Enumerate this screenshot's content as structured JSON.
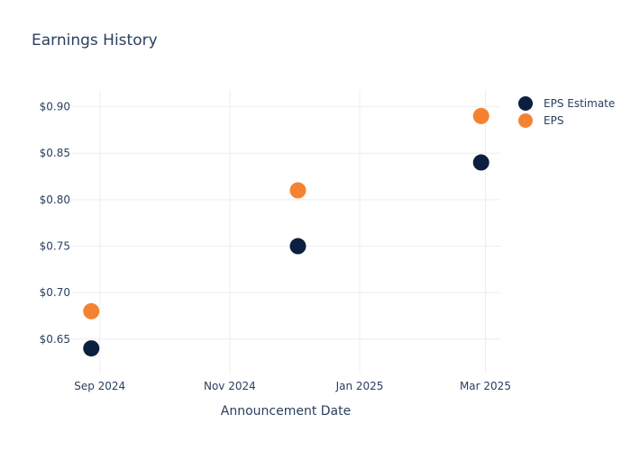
{
  "chart_data": {
    "type": "scatter",
    "title": "Earnings History",
    "xlabel": "Announcement Date",
    "ylabel": "",
    "x_tick_labels": [
      "Sep 2024",
      "Nov 2024",
      "Jan 2025",
      "Mar 2025"
    ],
    "x_tick_dates": [
      "2024-09-01",
      "2024-11-01",
      "2025-01-01",
      "2025-03-01"
    ],
    "y_tick_labels": [
      "$0.65",
      "$0.70",
      "$0.75",
      "$0.80",
      "$0.85",
      "$0.90"
    ],
    "y_tick_values": [
      0.65,
      0.7,
      0.75,
      0.8,
      0.85,
      0.9
    ],
    "xlim": [
      "2024-08-19",
      "2025-03-08"
    ],
    "ylim": [
      0.613,
      0.918
    ],
    "grid": true,
    "legend_position": "top-right",
    "series": [
      {
        "name": "EPS Estimate",
        "color": "#0b1f3f",
        "x": [
          "2024-08-28",
          "2024-12-03",
          "2025-02-27"
        ],
        "y": [
          0.64,
          0.75,
          0.84
        ]
      },
      {
        "name": "EPS",
        "color": "#f58231",
        "x": [
          "2024-08-28",
          "2024-12-03",
          "2025-02-27"
        ],
        "y": [
          0.68,
          0.81,
          0.89
        ]
      }
    ]
  }
}
